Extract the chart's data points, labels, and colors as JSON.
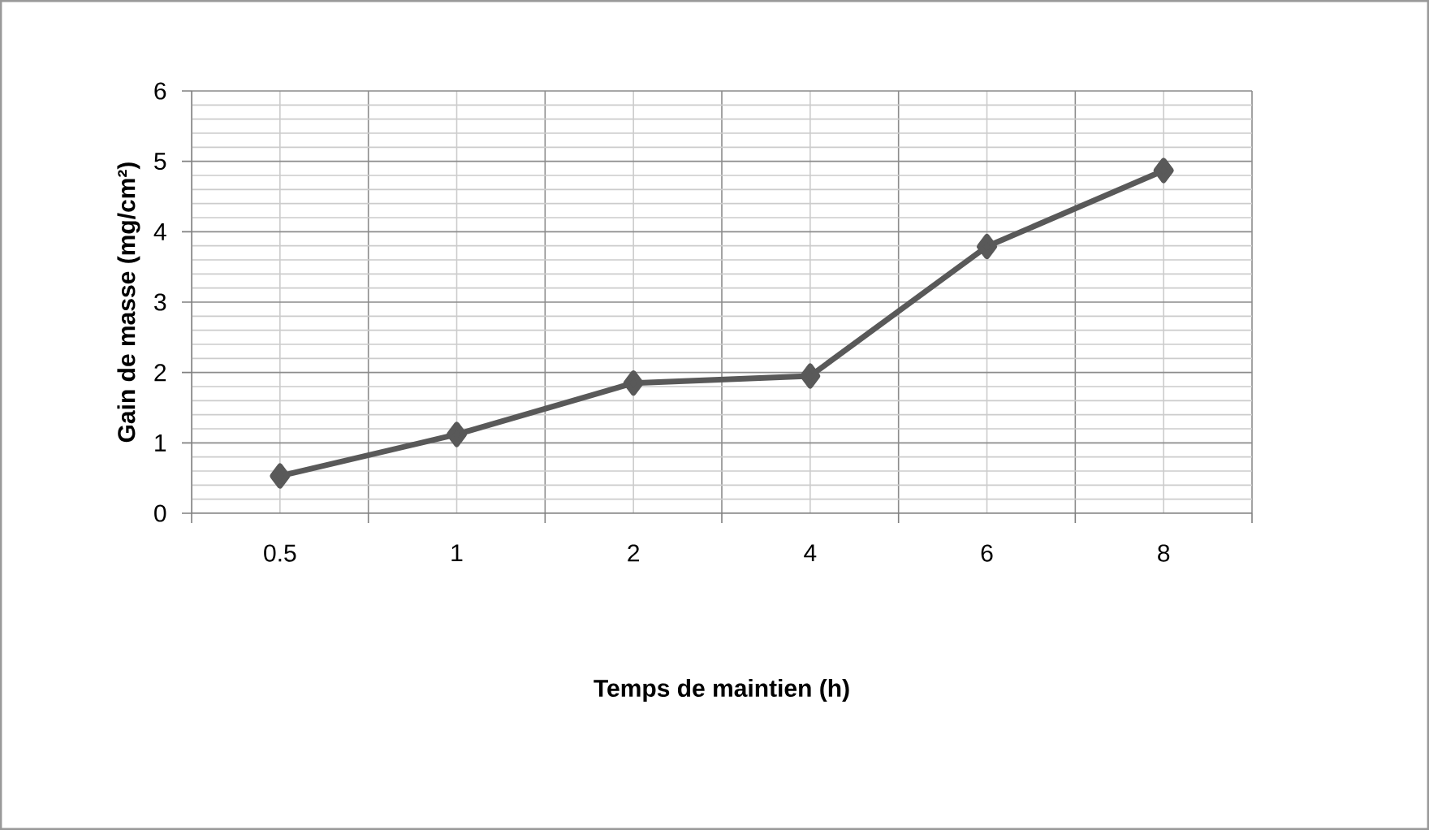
{
  "chart_data": {
    "type": "line",
    "xlabel": "Temps de maintien (h)",
    "ylabel": "Gain de masse (mg/cm²)",
    "categories": [
      "0.5",
      "1",
      "2",
      "4",
      "6",
      "8"
    ],
    "values": [
      0.53,
      1.12,
      1.85,
      1.95,
      3.79,
      4.87
    ],
    "color": "#595959",
    "marker": "diamond",
    "line_style": "solid",
    "ylim": [
      0,
      6
    ],
    "yticks": [
      0,
      1,
      2,
      3,
      4,
      5,
      6
    ],
    "grid": true
  }
}
